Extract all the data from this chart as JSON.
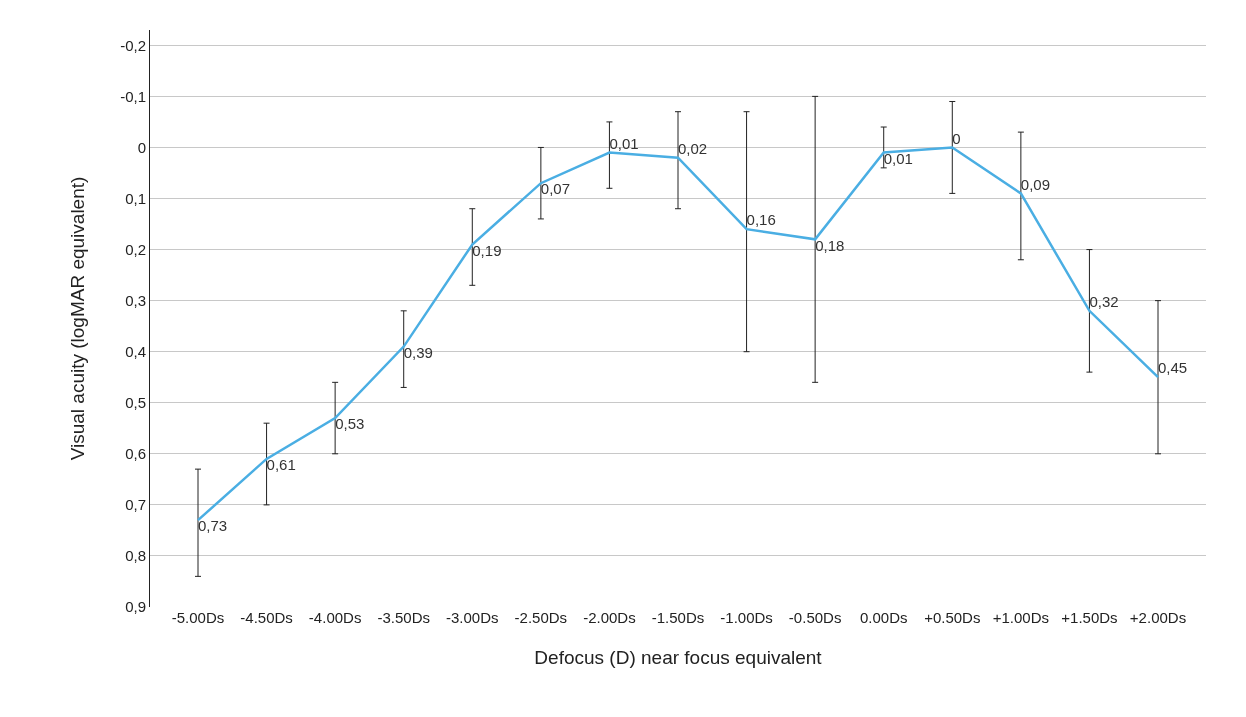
{
  "chart_data": {
    "type": "line",
    "xlabel": "Defocus (D) near focus equivalent",
    "ylabel": "Visual acuity (logMAR equivalent)",
    "categories": [
      "-5.00Ds",
      "-4.50Ds",
      "-4.00Ds",
      "-3.50Ds",
      "-3.00Ds",
      "-2.50Ds",
      "-2.00Ds",
      "-1.50Ds",
      "-1.00Ds",
      "-0.50Ds",
      "0.00Ds",
      "+0.50Ds",
      "+1.00Ds",
      "+1.50Ds",
      "+2.00Ds"
    ],
    "series": [
      {
        "color": "#4aaee3",
        "values": [
          0.73,
          0.61,
          0.53,
          0.39,
          0.19,
          0.07,
          0.01,
          0.02,
          0.16,
          0.18,
          0.01,
          0,
          0.09,
          0.32,
          0.45
        ],
        "value_labels": [
          "0,73",
          "0,61",
          "0,53",
          "0,39",
          "0,19",
          "0,07",
          "0,01",
          "0,02",
          "0,16",
          "0,18",
          "0,01",
          "0",
          "0,09",
          "0,32",
          "0,45"
        ],
        "errors": [
          [
            0.63,
            0.84
          ],
          [
            0.54,
            0.7
          ],
          [
            0.46,
            0.6
          ],
          [
            0.32,
            0.47
          ],
          [
            0.12,
            0.27
          ],
          [
            0.0,
            0.14
          ],
          [
            -0.05,
            0.08
          ],
          [
            -0.07,
            0.12
          ],
          [
            -0.07,
            0.4
          ],
          [
            -0.1,
            0.46
          ],
          [
            -0.04,
            0.04
          ],
          [
            -0.09,
            0.09
          ],
          [
            -0.03,
            0.22
          ],
          [
            0.2,
            0.44
          ],
          [
            0.3,
            0.6
          ]
        ]
      }
    ],
    "ylim": [
      0.9,
      -0.23
    ],
    "yticks": [
      {
        "value": 0.9,
        "label": "0,9"
      },
      {
        "value": 0.8,
        "label": "0,8"
      },
      {
        "value": 0.7,
        "label": "0,7"
      },
      {
        "value": 0.6,
        "label": "0,6"
      },
      {
        "value": 0.5,
        "label": "0,5"
      },
      {
        "value": 0.4,
        "label": "0,4"
      },
      {
        "value": 0.3,
        "label": "0,3"
      },
      {
        "value": 0.2,
        "label": "0,2"
      },
      {
        "value": 0.1,
        "label": "0,1"
      },
      0,
      {
        "value": -0.1,
        "label": "-0,1"
      },
      {
        "value": -0.2,
        "label": "-0,2"
      }
    ],
    "grid": "y",
    "marker": "none",
    "line_style": "solid"
  }
}
